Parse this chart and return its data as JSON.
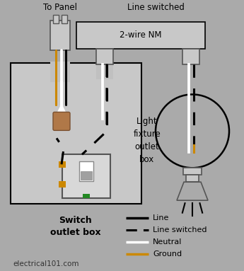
{
  "bg_color": "#aaaaaa",
  "colors": {
    "line": "#000000",
    "neutral": "#ffffff",
    "ground": "#cc8800",
    "switched": "#000000",
    "box_fill": "#c8c8c8",
    "box_edge": "#000000",
    "connector_fill": "#c8c8c8",
    "sheath_fill": "#c0c0c0",
    "splice_fill": "#b07848",
    "switch_fill": "#d8d8d8",
    "switch_toggle": "#a0a0a0",
    "green_screw": "#228822"
  },
  "labels": {
    "to_panel": "To Panel",
    "line_switched": "Line switched",
    "nm_label": "2-wire NM",
    "switch_box": "Switch\noutlet box",
    "light_box": "Light\nfixture\noutlet\nbox",
    "footer": "electrical101.com"
  },
  "legend": [
    {
      "label": "Line",
      "color": "#000000",
      "ls": "-"
    },
    {
      "label": "Line switched",
      "color": "#000000",
      "ls": "--"
    },
    {
      "label": "Neutral",
      "color": "#ffffff",
      "ls": "-"
    },
    {
      "label": "Ground",
      "color": "#cc8800",
      "ls": "-"
    }
  ]
}
